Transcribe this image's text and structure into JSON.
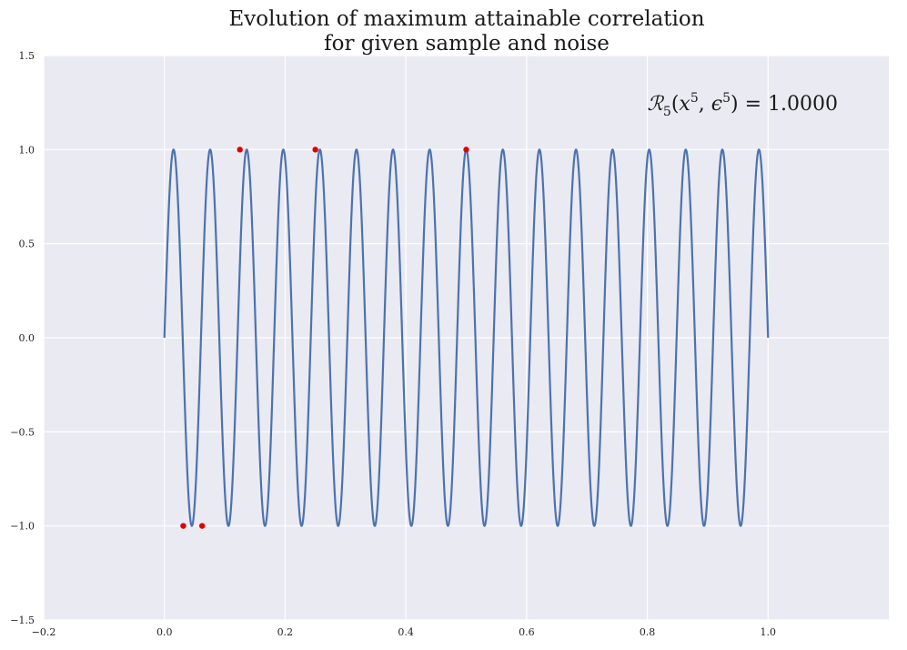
{
  "chart_data": {
    "type": "line",
    "title_lines": [
      "Evolution of maximum attainable correlation",
      "for given sample and noise"
    ],
    "xlabel": "",
    "ylabel": "",
    "xlim": [
      -0.2,
      1.2
    ],
    "ylim": [
      -1.5,
      1.5
    ],
    "x_ticks": [
      -0.2,
      0.0,
      0.2,
      0.4,
      0.6,
      0.8,
      1.0
    ],
    "x_tick_labels": [
      "−0.2",
      "0.0",
      "0.2",
      "0.4",
      "0.6",
      "0.8",
      "1.0"
    ],
    "y_ticks": [
      -1.5,
      -1.0,
      -0.5,
      0.0,
      0.5,
      1.0,
      1.5
    ],
    "y_tick_labels": [
      "−1.5",
      "−1.0",
      "−0.5",
      "0.0",
      "0.5",
      "1.0",
      "1.5"
    ],
    "grid": true,
    "series": [
      {
        "kind": "curve",
        "formula": "sin(2*pi*16.5*x)",
        "frequency": 16.5,
        "x_range": [
          0,
          1
        ],
        "color": "#4c72b0"
      },
      {
        "kind": "points",
        "color": "#e00000",
        "points": [
          {
            "x": 0.03125,
            "y": -1.0
          },
          {
            "x": 0.0625,
            "y": -1.0
          },
          {
            "x": 0.125,
            "y": 1.0
          },
          {
            "x": 0.25,
            "y": 1.0
          },
          {
            "x": 0.5,
            "y": 1.0
          }
        ]
      }
    ],
    "annotation": {
      "symbol": "ℛ",
      "subscript": "5",
      "arg1_base": "x",
      "arg1_exp": "5",
      "arg2_base": "ϵ",
      "arg2_exp": "5",
      "value": "1.0000"
    },
    "colors": {
      "background": "#eaeaf2",
      "grid": "#ffffff"
    }
  }
}
